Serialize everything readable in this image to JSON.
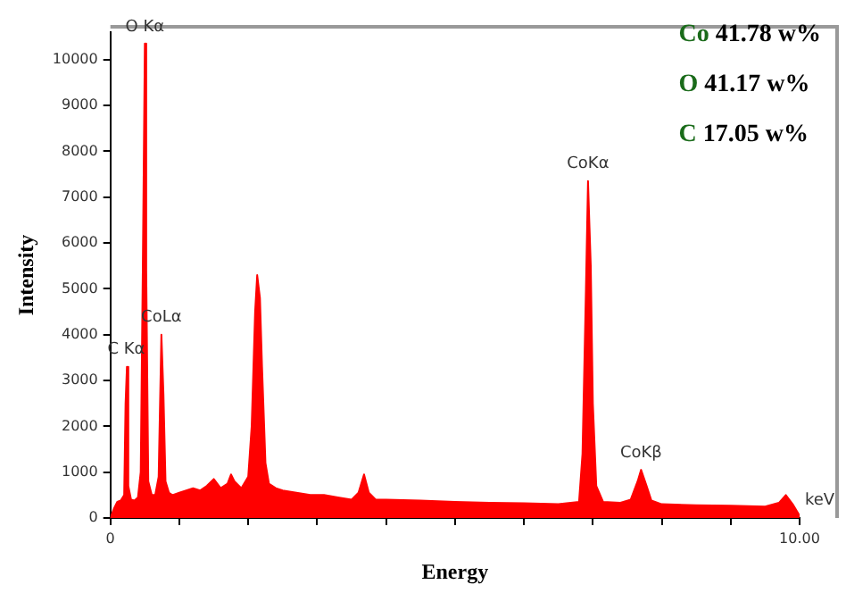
{
  "chart_data": {
    "type": "area",
    "xlabel": "Energy",
    "ylabel": "Intensity",
    "x": [
      0,
      0.05,
      0.1,
      0.15,
      0.2,
      0.22,
      0.24,
      0.26,
      0.3,
      0.35,
      0.4,
      0.44,
      0.47,
      0.5,
      0.52,
      0.55,
      0.6,
      0.65,
      0.7,
      0.74,
      0.77,
      0.8,
      0.85,
      0.9,
      1.0,
      1.1,
      1.2,
      1.3,
      1.4,
      1.5,
      1.6,
      1.7,
      1.75,
      1.8,
      1.9,
      2.0,
      2.05,
      2.1,
      2.13,
      2.17,
      2.2,
      2.25,
      2.3,
      2.4,
      2.5,
      2.7,
      2.9,
      3.1,
      3.3,
      3.5,
      3.6,
      3.68,
      3.75,
      3.85,
      4.0,
      4.5,
      5.0,
      5.5,
      6.0,
      6.5,
      6.8,
      6.85,
      6.9,
      6.93,
      6.97,
      7.0,
      7.05,
      7.15,
      7.4,
      7.55,
      7.65,
      7.7,
      7.78,
      7.85,
      8.0,
      8.5,
      9.0,
      9.5,
      9.7,
      9.8,
      9.9,
      10
    ],
    "series": [
      {
        "color": "#ff0000",
        "values": [
          0,
          200,
          350,
          380,
          500,
          2500,
          3300,
          700,
          400,
          380,
          450,
          1000,
          5400,
          10350,
          5400,
          800,
          500,
          500,
          900,
          4000,
          2700,
          800,
          550,
          500,
          550,
          600,
          650,
          600,
          700,
          850,
          650,
          750,
          950,
          800,
          650,
          900,
          2000,
          4500,
          5300,
          4800,
          3300,
          1200,
          750,
          650,
          600,
          550,
          500,
          500,
          450,
          400,
          550,
          950,
          550,
          400,
          400,
          380,
          350,
          330,
          320,
          300,
          350,
          1400,
          5000,
          7350,
          5500,
          2500,
          700,
          350,
          330,
          400,
          800,
          1050,
          700,
          380,
          300,
          280,
          270,
          250,
          330,
          500,
          300,
          50
        ]
      }
    ],
    "xlim": [
      0,
      10
    ],
    "xticks": [
      0,
      {
        "value": 1,
        "label": null
      },
      {
        "value": 2,
        "label": null
      },
      {
        "value": 3,
        "label": null
      },
      {
        "value": 4,
        "label": null
      },
      {
        "value": 5,
        "label": null
      },
      {
        "value": 6,
        "label": null
      },
      {
        "value": 7,
        "label": null
      },
      {
        "value": 8,
        "label": null
      },
      {
        "value": 9,
        "label": null
      },
      {
        "value": 10,
        "label": "10.00"
      }
    ],
    "ylim": [
      0,
      10600
    ],
    "yticks": [
      0,
      1000,
      2000,
      3000,
      4000,
      5000,
      6000,
      7000,
      8000,
      9000,
      10000
    ],
    "grid": false,
    "legend": false,
    "annotations": [
      {
        "text": "C Kα",
        "x": 0.23,
        "y": 3300
      },
      {
        "text": "O Kα",
        "x": 0.5,
        "y": 10350
      },
      {
        "text": "CoLα",
        "x": 0.74,
        "y": 4000
      },
      {
        "text": "CoKα",
        "x": 6.93,
        "y": 7350
      },
      {
        "text": "CoKβ",
        "x": 7.7,
        "y": 1050
      },
      {
        "text": "keV",
        "x": 10,
        "y": 0
      },
      "Co 41.78 w%",
      "O 41.17 w%",
      "C 17.05 w%"
    ]
  }
}
